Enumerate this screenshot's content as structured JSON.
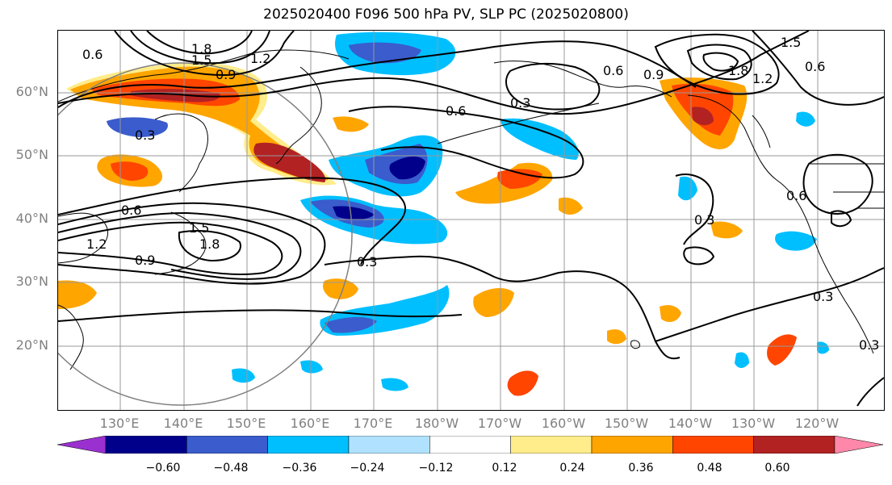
{
  "title": "2025020400 F096 500 hPa PV, SLP PC (2025020800)",
  "lat_labels": [
    "60°N",
    "50°N",
    "40°N",
    "30°N",
    "20°N"
  ],
  "lon_labels": [
    "130°E",
    "140°E",
    "150°E",
    "160°E",
    "170°E",
    "180°W",
    "170°W",
    "160°W",
    "150°W",
    "140°W",
    "130°W",
    "120°W"
  ],
  "contour_labels": [
    "0.6",
    "1.8",
    "1.5",
    "1.2",
    "0.9",
    "0.6",
    "0.9",
    "0.3",
    "0.6",
    "1.5",
    "1.8",
    "1.2",
    "0.6",
    "0.3",
    "0.6",
    "1.2",
    "1.5",
    "1.8",
    "0.9",
    "0.3",
    "0.6",
    "0.3",
    "0.3",
    "0.3"
  ],
  "colorbar": {
    "ticks": [
      "−0.60",
      "−0.48",
      "−0.36",
      "−0.24",
      "−0.12",
      "0.12",
      "0.24",
      "0.36",
      "0.48",
      "0.60"
    ],
    "colors": [
      "#9b30d0",
      "#00008b",
      "#3a5ccc",
      "#00bfff",
      "#b0e2ff",
      "#ffffff",
      "#ffec8b",
      "#ffa500",
      "#ff4500",
      "#b22222",
      "#ff88aa"
    ]
  }
}
